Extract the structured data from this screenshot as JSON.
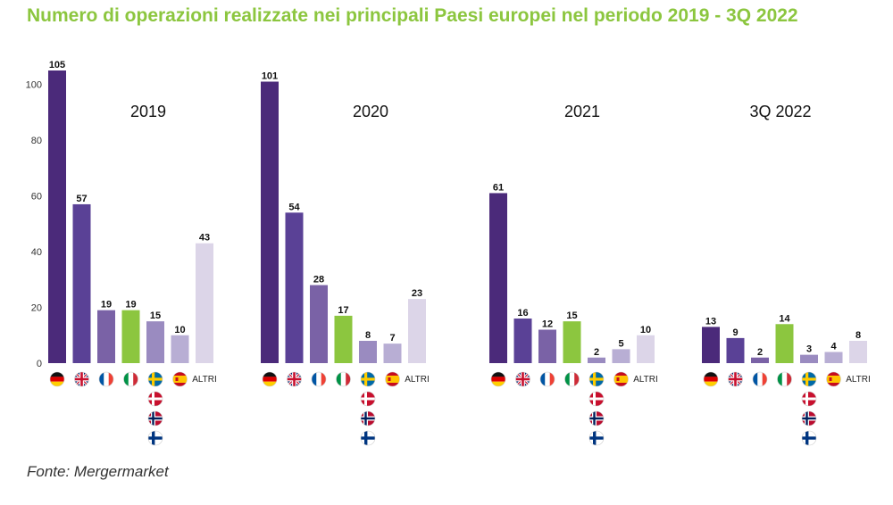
{
  "chart_data": {
    "type": "bar",
    "title": "Numero di operazioni realizzate nei principali Paesi europei nel periodo 2019 - 3Q 2022",
    "source": "Fonte: Mergermarket",
    "ylim": [
      0,
      105
    ],
    "yticks": [
      0,
      20,
      40,
      60,
      80,
      100
    ],
    "grid": false,
    "categories": [
      "Germania",
      "Regno Unito",
      "Francia",
      "Italia",
      "Paesi nordici",
      "Spagna",
      "ALTRI"
    ],
    "category_flags": [
      [
        "germany-flag-icon"
      ],
      [
        "united-kingdom-flag-icon"
      ],
      [
        "france-flag-icon"
      ],
      [
        "italy-flag-icon"
      ],
      [
        "sweden-flag-icon",
        "denmark-flag-icon",
        "norway-flag-icon",
        "finland-flag-icon"
      ],
      [
        "spain-flag-icon"
      ],
      []
    ],
    "altri_label": "ALTRI",
    "colors": [
      "#4b2a7a",
      "#5a4196",
      "#7a62a6",
      "#8cc63f",
      "#9a8bc0",
      "#b8aed4",
      "#dcd5e8"
    ],
    "groups": [
      {
        "name": "2019",
        "values": [
          105,
          57,
          19,
          19,
          15,
          10,
          43
        ]
      },
      {
        "name": "2020",
        "values": [
          101,
          54,
          28,
          17,
          8,
          7,
          23
        ]
      },
      {
        "name": "2021",
        "values": [
          61,
          16,
          12,
          15,
          2,
          5,
          10
        ]
      },
      {
        "name": "3Q 2022",
        "values": [
          13,
          9,
          2,
          14,
          3,
          4,
          8
        ]
      }
    ]
  }
}
